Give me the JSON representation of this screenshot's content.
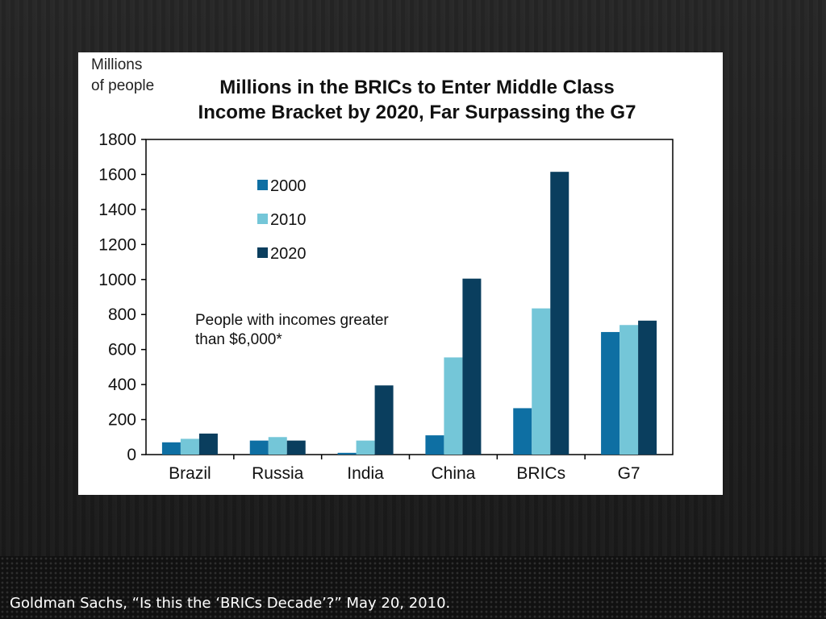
{
  "slide": {
    "source": "Goldman Sachs, “Is this the ‘BRICs Decade’?” May 20, 2010."
  },
  "colors": {
    "s2000": "#0e6fa3",
    "s2010": "#74c6d8",
    "s2020": "#0a3e5e"
  },
  "chart_data": {
    "type": "bar",
    "title_line1": "Millions in the BRICs to Enter Middle Class",
    "title_line2": "Income Bracket  by 2020, Far Surpassing the G7",
    "ylabel_line1": "Millions",
    "ylabel_line2": "of people",
    "xlabel": "",
    "annotation_line1": "People with incomes greater",
    "annotation_line2": "than $6,000*",
    "categories": [
      "Brazil",
      "Russia",
      "India",
      "China",
      "BRICs",
      "G7"
    ],
    "series": [
      {
        "name": "2000",
        "values": [
          70,
          80,
          10,
          110,
          265,
          700
        ]
      },
      {
        "name": "2010",
        "values": [
          90,
          100,
          80,
          555,
          835,
          740
        ]
      },
      {
        "name": "2020",
        "values": [
          120,
          80,
          395,
          1005,
          1615,
          765
        ]
      }
    ],
    "ylim": [
      0,
      1800
    ],
    "yticks": [
      0,
      200,
      400,
      600,
      800,
      1000,
      1200,
      1400,
      1600,
      1800
    ],
    "grid": false,
    "legend_position": "top-left"
  }
}
